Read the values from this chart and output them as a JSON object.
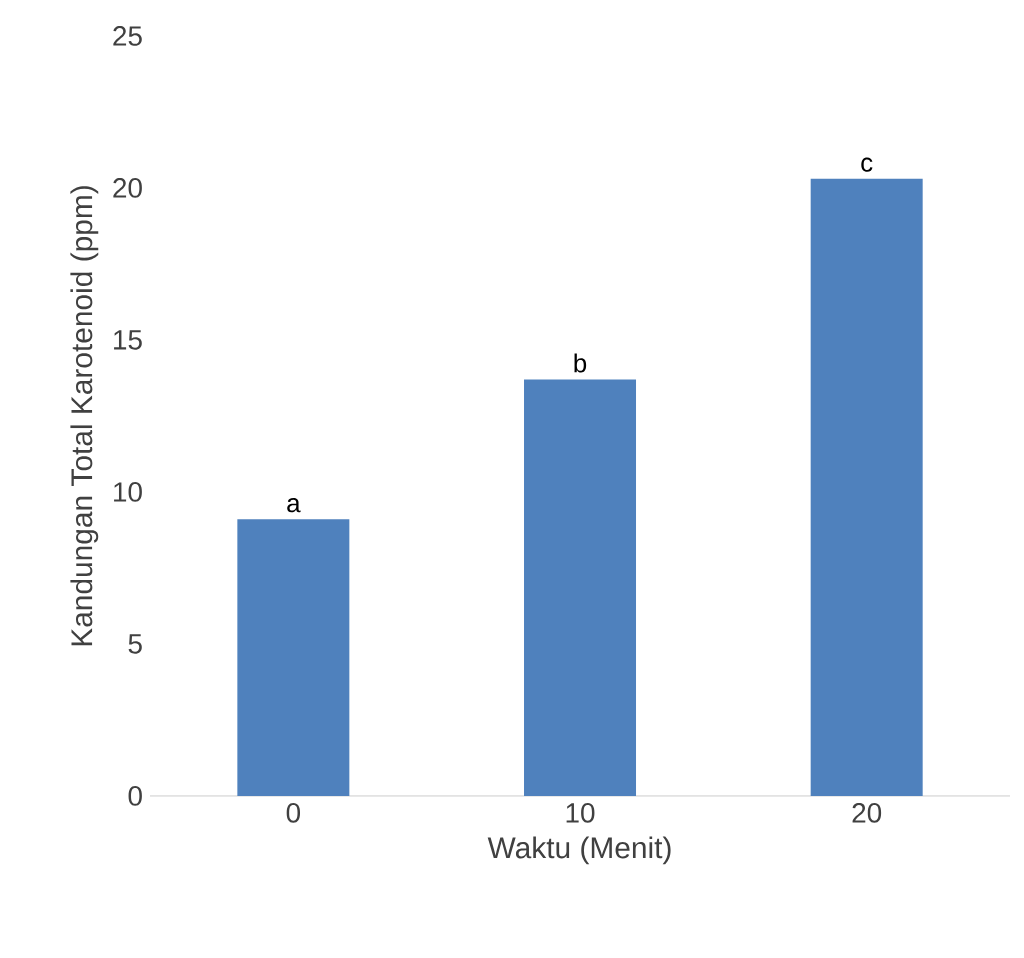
{
  "chart_data": {
    "type": "bar",
    "xlabel": "Waktu (Menit)",
    "ylabel": "Kandungan Total Karotenoid (ppm)",
    "categories": [
      "0",
      "10",
      "20"
    ],
    "values": [
      9.1,
      13.7,
      20.3
    ],
    "color": "#4f81bd",
    "ylim": [
      0,
      25
    ],
    "yticks": [
      0,
      5,
      10,
      15,
      20,
      25
    ],
    "annotations": [
      {
        "text": "a",
        "x": "0",
        "y": 9.1
      },
      {
        "text": "b",
        "x": "10",
        "y": 13.7
      },
      {
        "text": "c",
        "x": "20",
        "y": 20.3
      }
    ]
  }
}
